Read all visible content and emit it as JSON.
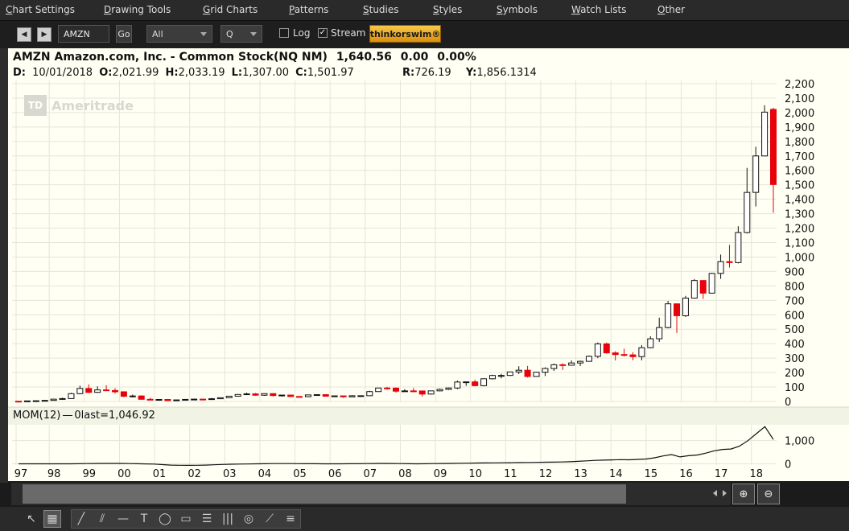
{
  "menu": [
    {
      "ul": "C",
      "rest": "hart Settings"
    },
    {
      "ul": "D",
      "rest": "rawing Tools"
    },
    {
      "ul": "G",
      "rest": "rid Charts"
    },
    {
      "ul": "P",
      "rest": "atterns"
    },
    {
      "ul": "S",
      "rest": "tudies"
    },
    {
      "ul": "S",
      "rest": "tyles"
    },
    {
      "ul": "S",
      "rest": "ymbols"
    },
    {
      "ul": "W",
      "rest": "atch Lists"
    },
    {
      "ul": "O",
      "rest": "ther"
    }
  ],
  "toolbar": {
    "symbol_value": "AMZN",
    "go_label": "Go",
    "range_select": "All",
    "period_select": "Q",
    "log_label": "Log",
    "log_checked": false,
    "stream_label": "Stream",
    "stream_checked": true,
    "brand_label": "thinkorswim®"
  },
  "quote": {
    "title": "AMZN Amazon.com, Inc. - Common Stock(NQ NM)",
    "last": "1,640.56",
    "change": "0.00",
    "change_pct": "0.00%",
    "d_label": "D:",
    "date": "10/01/2018",
    "o_label": "O:",
    "open": "2,021.99",
    "h_label": "H:",
    "high": "2,033.19",
    "l_label": "L:",
    "low": "1,307.00",
    "c_label": "C:",
    "close": "1,501.97",
    "r_label": "R:",
    "range": "726.19",
    "y_label": "Y:",
    "y_value": "1,856.1314"
  },
  "watermark": {
    "logo": "TD",
    "text": "Ameritrade"
  },
  "mom_label": "MOM(12)",
  "mom_zero": "0",
  "mom_last": "last=1,046.92",
  "colors": {
    "up_fill": "#ffffff",
    "down_fill": "#e8000b",
    "candle_edge": "#111111",
    "background": "#fffff3",
    "grid": "#e4e6d8"
  },
  "chart_data": {
    "type": "candlestick",
    "symbol": "AMZN",
    "interval": "quarterly",
    "x_ticks": [
      "97",
      "98",
      "99",
      "00",
      "01",
      "02",
      "03",
      "04",
      "05",
      "06",
      "07",
      "08",
      "09",
      "10",
      "11",
      "12",
      "13",
      "14",
      "15",
      "16",
      "17",
      "18"
    ],
    "y_ticks": [
      0,
      100,
      200,
      300,
      400,
      500,
      600,
      700,
      800,
      900,
      1000,
      1100,
      1200,
      1300,
      1400,
      1500,
      1600,
      1700,
      1800,
      1900,
      2000,
      2100,
      2200
    ],
    "y_tick_labels": [
      "0",
      "100",
      "200",
      "300",
      "400",
      "500",
      "600",
      "700",
      "800",
      "900",
      "1,000",
      "1,100",
      "1,200",
      "1,300",
      "1,400",
      "1,500",
      "1,600",
      "1,700",
      "1,800",
      "1,900",
      "2,000",
      "2,100",
      "2,200"
    ],
    "ylim": [
      0,
      2200
    ],
    "grid": true,
    "candles": [
      {
        "t": "1997 Q2",
        "o": 1.7,
        "h": 2.0,
        "l": 1.3,
        "c": 1.6
      },
      {
        "t": "1997 Q3",
        "o": 1.6,
        "h": 4.0,
        "l": 1.5,
        "c": 3.8
      },
      {
        "t": "1997 Q4",
        "o": 3.8,
        "h": 5.5,
        "l": 3.5,
        "c": 5.0
      },
      {
        "t": "1998 Q1",
        "o": 5.0,
        "h": 8.0,
        "l": 4.5,
        "c": 7.5
      },
      {
        "t": "1998 Q2",
        "o": 7.5,
        "h": 18.0,
        "l": 7.0,
        "c": 16.0
      },
      {
        "t": "1998 Q3",
        "o": 16.0,
        "h": 26.0,
        "l": 14.0,
        "c": 20.0
      },
      {
        "t": "1998 Q4",
        "o": 20.0,
        "h": 60.0,
        "l": 18.0,
        "c": 54.0
      },
      {
        "t": "1999 Q1",
        "o": 54.0,
        "h": 110.0,
        "l": 50.0,
        "c": 90.0
      },
      {
        "t": "1999 Q2",
        "o": 90.0,
        "h": 118.0,
        "l": 58.0,
        "c": 63.0
      },
      {
        "t": "1999 Q3",
        "o": 63.0,
        "h": 105.0,
        "l": 59.0,
        "c": 80.0
      },
      {
        "t": "1999 Q4",
        "o": 80.0,
        "h": 113.0,
        "l": 75.0,
        "c": 76.0
      },
      {
        "t": "2000 Q1",
        "o": 76.0,
        "h": 92.0,
        "l": 54.0,
        "c": 67.0
      },
      {
        "t": "2000 Q2",
        "o": 67.0,
        "h": 70.0,
        "l": 30.0,
        "c": 36.0
      },
      {
        "t": "2000 Q3",
        "o": 36.0,
        "h": 48.0,
        "l": 28.0,
        "c": 38.0
      },
      {
        "t": "2000 Q4",
        "o": 38.0,
        "h": 43.0,
        "l": 14.0,
        "c": 15.0
      },
      {
        "t": "2001 Q1",
        "o": 15.0,
        "h": 25.0,
        "l": 9.0,
        "c": 10.0
      },
      {
        "t": "2001 Q2",
        "o": 10.0,
        "h": 17.0,
        "l": 8.0,
        "c": 14.0
      },
      {
        "t": "2001 Q3",
        "o": 14.0,
        "h": 15.0,
        "l": 5.5,
        "c": 6.0
      },
      {
        "t": "2001 Q4",
        "o": 6.0,
        "h": 12.0,
        "l": 5.5,
        "c": 10.8
      },
      {
        "t": "2002 Q1",
        "o": 10.8,
        "h": 16.0,
        "l": 9.0,
        "c": 14.3
      },
      {
        "t": "2002 Q2",
        "o": 14.3,
        "h": 19.0,
        "l": 13.5,
        "c": 16.2
      },
      {
        "t": "2002 Q3",
        "o": 16.2,
        "h": 18.0,
        "l": 12.0,
        "c": 15.9
      },
      {
        "t": "2002 Q4",
        "o": 15.9,
        "h": 25.0,
        "l": 14.0,
        "c": 18.9
      },
      {
        "t": "2003 Q1",
        "o": 18.9,
        "h": 27.0,
        "l": 18.0,
        "c": 26.0
      },
      {
        "t": "2003 Q2",
        "o": 26.0,
        "h": 38.0,
        "l": 25.0,
        "c": 36.5
      },
      {
        "t": "2003 Q3",
        "o": 36.5,
        "h": 48.0,
        "l": 35.0,
        "c": 48.4
      },
      {
        "t": "2003 Q4",
        "o": 48.4,
        "h": 61.0,
        "l": 47.0,
        "c": 52.6
      },
      {
        "t": "2004 Q1",
        "o": 52.6,
        "h": 58.0,
        "l": 40.0,
        "c": 43.3
      },
      {
        "t": "2004 Q2",
        "o": 43.3,
        "h": 55.0,
        "l": 39.0,
        "c": 54.4
      },
      {
        "t": "2004 Q3",
        "o": 54.4,
        "h": 55.0,
        "l": 35.0,
        "c": 40.9
      },
      {
        "t": "2004 Q4",
        "o": 40.9,
        "h": 46.0,
        "l": 34.0,
        "c": 44.3
      },
      {
        "t": "2005 Q1",
        "o": 44.3,
        "h": 45.0,
        "l": 32.0,
        "c": 34.3
      },
      {
        "t": "2005 Q2",
        "o": 34.3,
        "h": 37.0,
        "l": 30.0,
        "c": 33.1
      },
      {
        "t": "2005 Q3",
        "o": 33.1,
        "h": 46.0,
        "l": 32.0,
        "c": 45.3
      },
      {
        "t": "2005 Q4",
        "o": 45.3,
        "h": 50.0,
        "l": 39.0,
        "c": 47.2
      },
      {
        "t": "2006 Q1",
        "o": 47.2,
        "h": 48.0,
        "l": 35.0,
        "c": 36.5
      },
      {
        "t": "2006 Q2",
        "o": 36.5,
        "h": 40.0,
        "l": 31.0,
        "c": 38.7
      },
      {
        "t": "2006 Q3",
        "o": 38.7,
        "h": 39.0,
        "l": 25.8,
        "c": 32.1
      },
      {
        "t": "2006 Q4",
        "o": 32.1,
        "h": 43.0,
        "l": 31.0,
        "c": 39.5
      },
      {
        "t": "2007 Q1",
        "o": 39.5,
        "h": 42.0,
        "l": 36.0,
        "c": 39.8
      },
      {
        "t": "2007 Q2",
        "o": 39.8,
        "h": 74.0,
        "l": 39.0,
        "c": 68.4
      },
      {
        "t": "2007 Q3",
        "o": 68.4,
        "h": 94.0,
        "l": 68.0,
        "c": 93.2
      },
      {
        "t": "2007 Q4",
        "o": 93.2,
        "h": 101.0,
        "l": 82.0,
        "c": 92.6
      },
      {
        "t": "2008 Q1",
        "o": 92.6,
        "h": 97.0,
        "l": 61.0,
        "c": 71.3
      },
      {
        "t": "2008 Q2",
        "o": 71.3,
        "h": 85.0,
        "l": 70.0,
        "c": 73.3
      },
      {
        "t": "2008 Q3",
        "o": 73.3,
        "h": 93.0,
        "l": 63.0,
        "c": 72.8
      },
      {
        "t": "2008 Q4",
        "o": 72.8,
        "h": 75.0,
        "l": 34.7,
        "c": 51.3
      },
      {
        "t": "2009 Q1",
        "o": 51.3,
        "h": 75.0,
        "l": 47.0,
        "c": 73.4
      },
      {
        "t": "2009 Q2",
        "o": 73.4,
        "h": 89.0,
        "l": 70.0,
        "c": 83.7
      },
      {
        "t": "2009 Q3",
        "o": 83.7,
        "h": 97.0,
        "l": 79.0,
        "c": 93.4
      },
      {
        "t": "2009 Q4",
        "o": 93.4,
        "h": 145.0,
        "l": 85.0,
        "c": 134.5
      },
      {
        "t": "2010 Q1",
        "o": 134.5,
        "h": 138.0,
        "l": 108.0,
        "c": 135.8
      },
      {
        "t": "2010 Q2",
        "o": 135.8,
        "h": 151.0,
        "l": 105.0,
        "c": 109.3
      },
      {
        "t": "2010 Q3",
        "o": 109.3,
        "h": 160.0,
        "l": 105.0,
        "c": 157.1
      },
      {
        "t": "2010 Q4",
        "o": 157.1,
        "h": 185.0,
        "l": 152.0,
        "c": 180.0
      },
      {
        "t": "2011 Q1",
        "o": 180.0,
        "h": 191.0,
        "l": 160.0,
        "c": 180.1
      },
      {
        "t": "2011 Q2",
        "o": 180.1,
        "h": 206.0,
        "l": 177.0,
        "c": 204.5
      },
      {
        "t": "2011 Q3",
        "o": 204.5,
        "h": 244.0,
        "l": 190.0,
        "c": 216.2
      },
      {
        "t": "2011 Q4",
        "o": 216.2,
        "h": 246.0,
        "l": 166.0,
        "c": 173.1
      },
      {
        "t": "2012 Q1",
        "o": 173.1,
        "h": 206.0,
        "l": 172.0,
        "c": 202.5
      },
      {
        "t": "2012 Q2",
        "o": 202.5,
        "h": 236.0,
        "l": 176.0,
        "c": 228.4
      },
      {
        "t": "2012 Q3",
        "o": 228.4,
        "h": 262.0,
        "l": 211.0,
        "c": 254.3
      },
      {
        "t": "2012 Q4",
        "o": 254.3,
        "h": 264.0,
        "l": 218.0,
        "c": 250.9
      },
      {
        "t": "2013 Q1",
        "o": 250.9,
        "h": 284.0,
        "l": 253.0,
        "c": 266.5
      },
      {
        "t": "2013 Q2",
        "o": 266.5,
        "h": 283.0,
        "l": 245.0,
        "c": 277.7
      },
      {
        "t": "2013 Q3",
        "o": 277.7,
        "h": 318.0,
        "l": 276.0,
        "c": 312.6
      },
      {
        "t": "2013 Q4",
        "o": 312.6,
        "h": 408.0,
        "l": 300.0,
        "c": 398.8
      },
      {
        "t": "2014 Q1",
        "o": 398.8,
        "h": 408.0,
        "l": 330.0,
        "c": 336.4
      },
      {
        "t": "2014 Q2",
        "o": 336.4,
        "h": 348.0,
        "l": 284.0,
        "c": 324.8
      },
      {
        "t": "2014 Q3",
        "o": 324.8,
        "h": 365.0,
        "l": 312.0,
        "c": 322.4
      },
      {
        "t": "2014 Q4",
        "o": 322.4,
        "h": 341.0,
        "l": 285.0,
        "c": 310.4
      },
      {
        "t": "2015 Q1",
        "o": 310.4,
        "h": 390.0,
        "l": 285.0,
        "c": 372.1
      },
      {
        "t": "2015 Q2",
        "o": 372.1,
        "h": 452.0,
        "l": 368.0,
        "c": 434.1
      },
      {
        "t": "2015 Q3",
        "o": 434.1,
        "h": 580.0,
        "l": 412.0,
        "c": 511.9
      },
      {
        "t": "2015 Q4",
        "o": 511.9,
        "h": 696.0,
        "l": 506.0,
        "c": 675.9
      },
      {
        "t": "2016 Q1",
        "o": 675.9,
        "h": 680.0,
        "l": 474.0,
        "c": 593.6
      },
      {
        "t": "2016 Q2",
        "o": 593.6,
        "h": 731.0,
        "l": 585.0,
        "c": 715.6
      },
      {
        "t": "2016 Q3",
        "o": 715.6,
        "h": 847.0,
        "l": 717.0,
        "c": 837.3
      },
      {
        "t": "2016 Q4",
        "o": 837.3,
        "h": 839.0,
        "l": 710.0,
        "c": 749.9
      },
      {
        "t": "2017 Q1",
        "o": 749.9,
        "h": 891.0,
        "l": 754.0,
        "c": 886.5
      },
      {
        "t": "2017 Q2",
        "o": 886.5,
        "h": 1017.0,
        "l": 849.0,
        "c": 968.0
      },
      {
        "t": "2017 Q3",
        "o": 968.0,
        "h": 1084.0,
        "l": 927.0,
        "c": 961.4
      },
      {
        "t": "2017 Q4",
        "o": 961.4,
        "h": 1213.0,
        "l": 956.0,
        "c": 1169.5
      },
      {
        "t": "2018 Q1",
        "o": 1169.5,
        "h": 1617.0,
        "l": 1163.0,
        "c": 1447.3
      },
      {
        "t": "2018 Q2",
        "o": 1447.3,
        "h": 1763.0,
        "l": 1350.0,
        "c": 1699.8
      },
      {
        "t": "2018 Q3",
        "o": 1699.8,
        "h": 2050.5,
        "l": 1700.0,
        "c": 2003.0
      },
      {
        "t": "2018 Q4",
        "o": 2021.99,
        "h": 2033.19,
        "l": 1307.0,
        "c": 1501.97
      }
    ],
    "momentum": {
      "name": "MOM(12)",
      "y_ticks": [
        0,
        1000
      ],
      "y_tick_labels": [
        "0",
        "1,000"
      ],
      "ylim": [
        -120,
        1750
      ],
      "values": [
        0,
        0,
        0,
        0,
        0,
        0,
        0,
        5,
        10,
        15,
        18,
        20,
        17,
        12,
        6,
        -2,
        -10,
        -35,
        -55,
        -60,
        -65,
        -60,
        -55,
        -40,
        -25,
        -15,
        -8,
        -5,
        0,
        5,
        10,
        12,
        10,
        8,
        6,
        4,
        2,
        0,
        2,
        4,
        6,
        10,
        15,
        18,
        15,
        10,
        5,
        0,
        5,
        10,
        15,
        20,
        25,
        30,
        35,
        40,
        42,
        45,
        50,
        55,
        60,
        65,
        70,
        75,
        80,
        90,
        110,
        130,
        150,
        160,
        170,
        180,
        175,
        190,
        210,
        260,
        340,
        400,
        300,
        350,
        380,
        460,
        560,
        620,
        640,
        760,
        1000,
        1300,
        1600,
        1046.92
      ]
    }
  }
}
